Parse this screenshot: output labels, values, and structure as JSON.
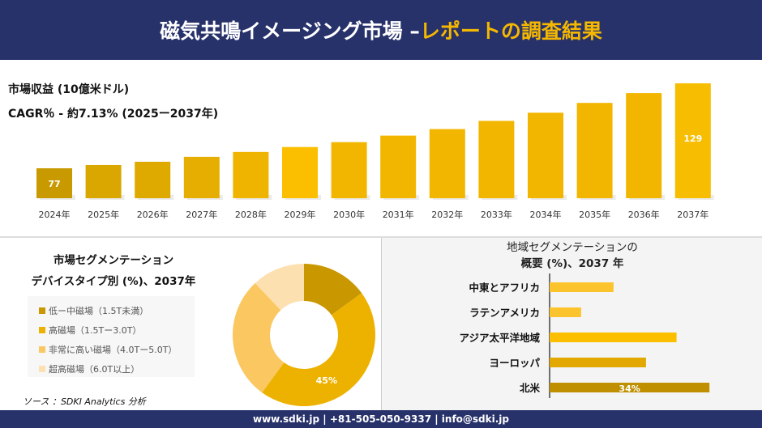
{
  "header": {
    "title_main": "磁気共鳴イメージング市場 –",
    "title_accent": "レポートの調査結果"
  },
  "revenue": {
    "title": "市場収益 (10億米ドル)",
    "cagr": "CAGR％ - 約7.13% (2025ー2037年)"
  },
  "chart_data": [
    {
      "type": "bar",
      "categories": [
        "2024年",
        "2025年",
        "2026年",
        "2027年",
        "2028年",
        "2029年",
        "2030年",
        "2031年",
        "2032年",
        "2033年",
        "2034年",
        "2035年",
        "2036年",
        "2037年"
      ],
      "values": [
        77,
        79,
        81,
        84,
        87,
        90,
        93,
        97,
        101,
        106,
        111,
        117,
        123,
        129
      ],
      "data_labels": {
        "0": "77",
        "13": "129"
      },
      "colors": [
        "#c89a00",
        "#d9a700",
        "#dfaa00",
        "#e6ae00",
        "#eeb400",
        "#fbbf00",
        "#f2b600",
        "#f2b600",
        "#f2b600",
        "#f2b600",
        "#f2b600",
        "#f2b600",
        "#f2b600",
        "#f7bd00"
      ]
    },
    {
      "type": "pie",
      "title": "市場セグメンテーション デバイスタイプ別 (%)、2037年",
      "labels": [
        "低ー中磁場（1.5T未満）",
        "高磁場（1.5Tー3.0T）",
        "非常に高い磁場（4.0Tー5.0T）",
        "超高磁場（6.0T以上）"
      ],
      "values": [
        15,
        45,
        28,
        12
      ],
      "data_labels": {
        "1": "45%"
      },
      "colors": [
        "#c99700",
        "#edb200",
        "#fbc760",
        "#fde0b0"
      ]
    },
    {
      "type": "bar",
      "orientation": "horizontal",
      "title": "地域セグメンテーションの 概要 (%)、2037 年",
      "categories": [
        "中東とアフリカ",
        "ラテンアメリカ",
        "アジア太平洋地域",
        "ヨーロッパ",
        "北米"
      ],
      "values": [
        13.6,
        6.7,
        27,
        20.5,
        34
      ],
      "data_labels": {
        "4": "34%"
      },
      "colors": [
        "#fcc42c",
        "#fcc42c",
        "#fbbf00",
        "#e2a800",
        "#bf8f00"
      ]
    }
  ],
  "segment": {
    "title1": "市場セグメンテーション",
    "title2": "デバイスタイプ別 (%)、2037年"
  },
  "region": {
    "title1": "地域セグメンテーションの",
    "title2": "概要 (%)、2037 年"
  },
  "source": "ソース ：SDKI Analytics 分析",
  "footer": "www.sdki.jp | +81-505-050-9337 | info@sdki.jp"
}
